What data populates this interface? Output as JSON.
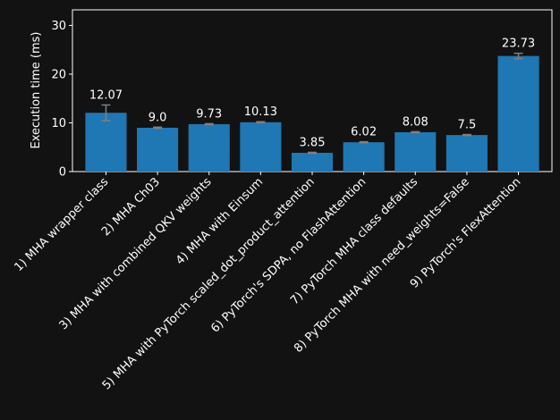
{
  "chart_data": {
    "type": "bar",
    "title": "",
    "xlabel": "",
    "ylabel": "Execution time (ms)",
    "ylim": [
      0,
      33.2
    ],
    "yticks": [
      0,
      10,
      20,
      30
    ],
    "grid": false,
    "categories": [
      "1) MHA wrapper class",
      "2) MHA Ch03",
      "3) MHA with combined QKV weights",
      "4) MHA with Einsum",
      "5) MHA with PyTorch scaled_dot_product_attention",
      "6) PyTorch's SDPA, no FlashAttention",
      "7) PyTorch MHA class defaults",
      "8) PyTorch MHA with need_weights=False",
      "9) PyTorch's FlexAttention"
    ],
    "values": [
      12.07,
      9.0,
      9.73,
      10.13,
      3.85,
      6.02,
      8.08,
      7.5,
      23.73
    ],
    "value_labels": [
      "12.07",
      "9.0",
      "9.73",
      "10.13",
      "3.85",
      "6.02",
      "8.08",
      "7.5",
      "23.73"
    ],
    "errors": [
      1.6,
      0.12,
      0.1,
      0.1,
      0.1,
      0.1,
      0.1,
      0.1,
      0.55
    ],
    "colors": {
      "bar": "#1f77b4",
      "errorbar": "#808080",
      "background": "#121212",
      "axes": "#ffffff",
      "text": "#ffffff"
    }
  }
}
